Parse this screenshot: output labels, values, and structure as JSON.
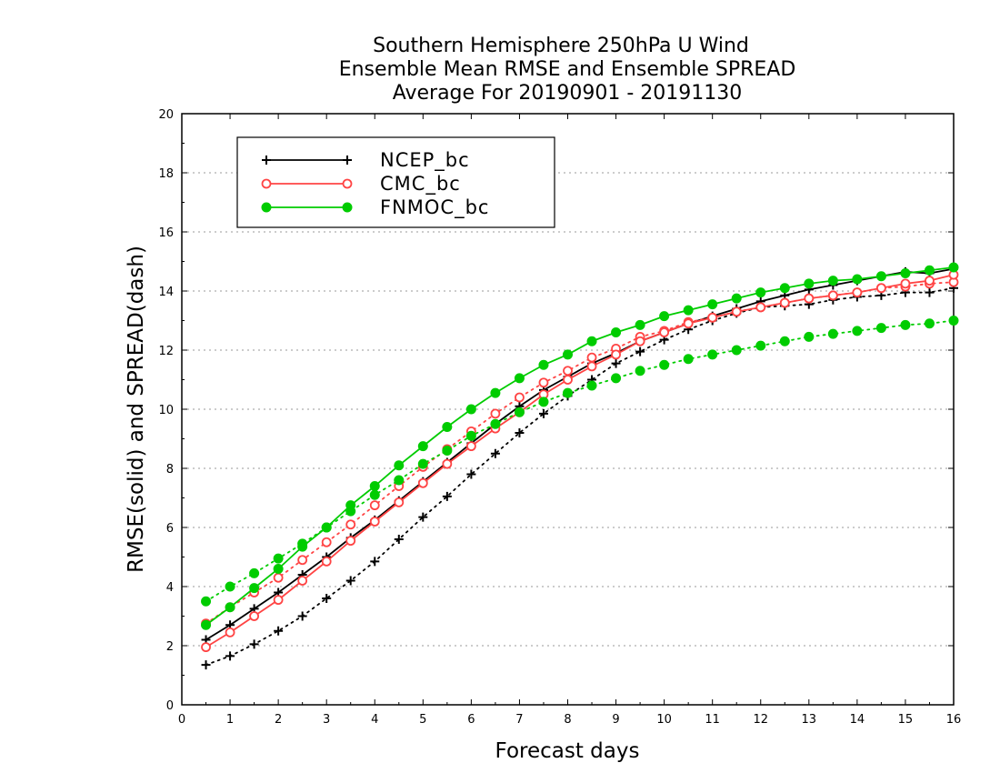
{
  "chart_data": {
    "type": "line",
    "title": [
      "Southern Hemisphere 250hPa U Wind",
      "Ensemble Mean RMSE and Ensemble SPREAD",
      "Average For 20190901 - 20191130"
    ],
    "xlabel": "Forecast days",
    "ylabel": "RMSE(solid) and SPREAD(dash)",
    "xlim": [
      0,
      16
    ],
    "ylim": [
      0,
      20
    ],
    "xticks": [
      "0",
      "1",
      "2",
      "3",
      "4",
      "5",
      "6",
      "7",
      "8",
      "9",
      "10",
      "11",
      "12",
      "13",
      "14",
      "15",
      "16"
    ],
    "yticks": [
      "0",
      "2",
      "4",
      "6",
      "8",
      "10",
      "12",
      "14",
      "16",
      "18",
      "20"
    ],
    "grid": true,
    "legend_position": "top-left",
    "x": [
      0.5,
      1,
      1.5,
      2,
      2.5,
      3,
      3.5,
      4,
      4.5,
      5,
      5.5,
      6,
      6.5,
      7,
      7.5,
      8,
      8.5,
      9,
      9.5,
      10,
      10.5,
      11,
      11.5,
      12,
      12.5,
      13,
      13.5,
      14,
      14.5,
      15,
      15.5,
      16
    ],
    "series": [
      {
        "name": "NCEP_bc",
        "color": "#000000",
        "marker": "plus",
        "rmse": [
          2.2,
          2.7,
          3.25,
          3.8,
          4.4,
          5.0,
          5.65,
          6.25,
          6.9,
          7.55,
          8.2,
          8.85,
          9.5,
          10.1,
          10.65,
          11.1,
          11.55,
          11.9,
          12.3,
          12.6,
          12.9,
          13.15,
          13.4,
          13.65,
          13.85,
          14.05,
          14.2,
          14.35,
          14.5,
          14.65,
          14.6,
          14.75
        ],
        "spread": [
          1.35,
          1.65,
          2.05,
          2.5,
          3.0,
          3.6,
          4.2,
          4.85,
          5.6,
          6.35,
          7.05,
          7.8,
          8.5,
          9.2,
          9.85,
          10.45,
          11.0,
          11.55,
          11.95,
          12.35,
          12.7,
          13.0,
          13.25,
          13.45,
          13.5,
          13.55,
          13.7,
          13.8,
          13.85,
          13.95,
          13.95,
          14.1
        ]
      },
      {
        "name": "CMC_bc",
        "color": "#ff4444",
        "marker": "open-circle",
        "rmse": [
          1.95,
          2.45,
          3.0,
          3.55,
          4.2,
          4.85,
          5.55,
          6.2,
          6.85,
          7.5,
          8.15,
          8.75,
          9.35,
          9.9,
          10.5,
          11.0,
          11.45,
          11.85,
          12.3,
          12.6,
          12.9,
          13.1,
          13.3,
          13.45,
          13.6,
          13.75,
          13.85,
          13.95,
          14.1,
          14.25,
          14.35,
          14.55
        ],
        "spread": [
          2.75,
          3.3,
          3.8,
          4.3,
          4.9,
          5.5,
          6.1,
          6.75,
          7.4,
          8.05,
          8.65,
          9.25,
          9.85,
          10.4,
          10.9,
          11.3,
          11.75,
          12.05,
          12.45,
          12.65,
          12.95,
          13.1,
          13.3,
          13.45,
          13.6,
          13.75,
          13.85,
          13.95,
          14.1,
          14.15,
          14.25,
          14.3
        ]
      },
      {
        "name": "FNMOC_bc",
        "color": "#00cc00",
        "marker": "filled-circle",
        "rmse": [
          2.7,
          3.3,
          3.95,
          4.6,
          5.35,
          6.0,
          6.75,
          7.4,
          8.1,
          8.75,
          9.4,
          10.0,
          10.55,
          11.05,
          11.5,
          11.85,
          12.3,
          12.6,
          12.85,
          13.15,
          13.35,
          13.55,
          13.75,
          13.95,
          14.1,
          14.25,
          14.35,
          14.4,
          14.5,
          14.6,
          14.7,
          14.8
        ],
        "spread": [
          3.5,
          4.0,
          4.45,
          4.95,
          5.45,
          6.0,
          6.55,
          7.1,
          7.6,
          8.15,
          8.6,
          9.1,
          9.5,
          9.9,
          10.25,
          10.55,
          10.8,
          11.05,
          11.3,
          11.5,
          11.7,
          11.85,
          12.0,
          12.15,
          12.3,
          12.45,
          12.55,
          12.65,
          12.75,
          12.85,
          12.9,
          13.0
        ]
      }
    ]
  }
}
